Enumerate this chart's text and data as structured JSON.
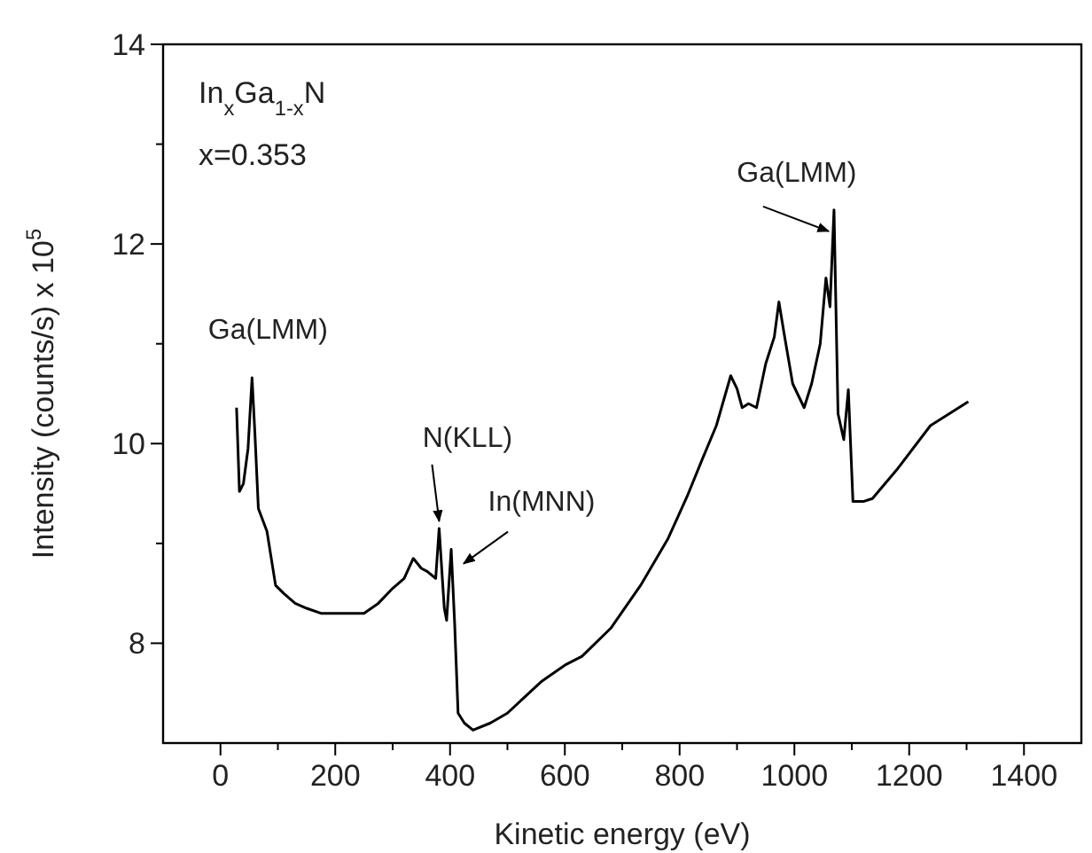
{
  "chart_data": {
    "type": "line",
    "xlabel": "Kinetic energy (eV)",
    "ylabel": "Intensity (counts/s) x 10$^{5}$",
    "xlim": [
      -100,
      1500
    ],
    "ylim": [
      7,
      14
    ],
    "xticks": [
      0,
      {
        "value": 100,
        "label": null
      },
      200,
      {
        "value": 300,
        "label": null
      },
      400,
      {
        "value": 500,
        "label": null
      },
      600,
      {
        "value": 700,
        "label": null
      },
      800,
      {
        "value": 900,
        "label": null
      },
      1000,
      {
        "value": 1100,
        "label": null
      },
      1200,
      {
        "value": 1300,
        "label": null
      },
      1400
    ],
    "yticks": [
      8,
      {
        "value": 9,
        "label": null
      },
      10,
      {
        "value": 11,
        "label": null
      },
      12,
      {
        "value": 13,
        "label": null
      },
      14
    ],
    "grid": false,
    "marker": "none",
    "line_style": "solid",
    "series": [
      {
        "color": "#000000",
        "x": [
          28,
          33,
          40,
          48,
          55,
          60,
          66,
          81,
          96,
          110,
          130,
          150,
          175,
          200,
          225,
          250,
          275,
          300,
          320,
          336,
          350,
          360,
          375,
          381,
          386,
          390,
          394,
          402,
          408,
          414,
          425,
          440,
          470,
          500,
          530,
          560,
          600,
          630,
          680,
          732,
          780,
          813,
          840,
          864,
          880,
          889,
          900,
          909,
          920,
          934,
          950,
          965,
          973,
          983,
          997,
          1017,
          1030,
          1045,
          1055,
          1062,
          1069,
          1076,
          1086,
          1094,
          1102,
          1120,
          1136,
          1180,
          1237,
          1270,
          1303
        ],
        "values": [
          10.36,
          9.52,
          9.6,
          9.95,
          10.66,
          10.1,
          9.35,
          9.12,
          8.58,
          8.5,
          8.4,
          8.35,
          8.3,
          8.3,
          8.3,
          8.3,
          8.4,
          8.55,
          8.65,
          8.85,
          8.75,
          8.72,
          8.65,
          9.15,
          8.7,
          8.35,
          8.23,
          8.94,
          8.2,
          7.3,
          7.2,
          7.13,
          7.2,
          7.3,
          7.46,
          7.62,
          7.78,
          7.87,
          8.15,
          8.58,
          9.05,
          9.47,
          9.85,
          10.18,
          10.5,
          10.68,
          10.55,
          10.36,
          10.4,
          10.36,
          10.8,
          11.07,
          11.42,
          11.07,
          10.6,
          10.36,
          10.6,
          11.0,
          11.66,
          11.37,
          12.34,
          10.3,
          10.04,
          10.54,
          9.42,
          9.42,
          9.45,
          9.75,
          10.18,
          10.3,
          10.42
        ]
      }
    ],
    "annotations": [
      "In$_{x}$Ga$_{1-x}$N",
      "x=0.353",
      {
        "text": "Ga(LMM)",
        "x": 55,
        "y": 10.66
      },
      {
        "text": "N(KLL)",
        "x": 381,
        "y": 9.15
      },
      {
        "text": "In(MNN)",
        "x": 402,
        "y": 8.94
      },
      {
        "text": "Ga(LMM)",
        "x": 1069,
        "y": 12.34
      }
    ]
  }
}
